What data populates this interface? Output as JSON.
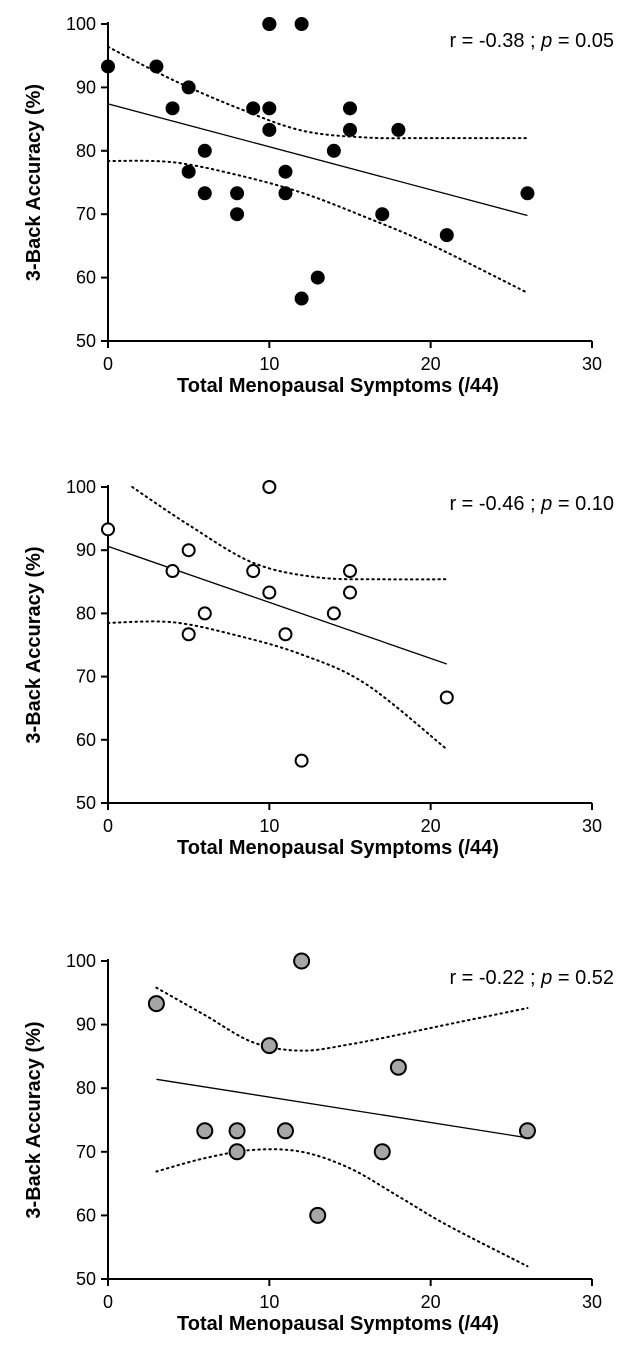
{
  "chart_data": [
    {
      "type": "scatter",
      "xlabel": "Total Menopausal Symptoms (/44)",
      "ylabel": "3-Back Accuracy (%)",
      "xlim": [
        0,
        30
      ],
      "ylim": [
        50,
        100
      ],
      "xticks": [
        "0",
        "10",
        "20",
        "30"
      ],
      "yticks": [
        "50",
        "60",
        "70",
        "80",
        "90",
        "100"
      ],
      "grid": false,
      "marker": {
        "fill": "#000000",
        "stroke": "#000000"
      },
      "annotation": {
        "r_text": "r = -0.38 ; ",
        "p_label": "p",
        "p_text": " = 0.05"
      },
      "fit_line": {
        "x": [
          0,
          26
        ],
        "y": [
          87.4,
          69.8
        ]
      },
      "ci_upper": {
        "x": [
          0,
          4,
          8,
          12,
          16,
          20,
          26
        ],
        "y": [
          96.4,
          91.2,
          86.8,
          83.2,
          82.1,
          82.0,
          82.0
        ]
      },
      "ci_lower": {
        "x": [
          0,
          4,
          8,
          12,
          16,
          20,
          26
        ],
        "y": [
          78.4,
          78.2,
          76.2,
          73.4,
          69.5,
          65.2,
          57.6
        ]
      },
      "points": {
        "x": [
          0,
          3,
          4,
          5,
          5,
          6,
          6,
          8,
          8,
          9,
          10,
          10,
          10,
          10,
          11,
          11,
          12,
          12,
          13,
          14,
          15,
          15,
          17,
          18,
          21,
          26
        ],
        "y": [
          93.3,
          93.3,
          86.7,
          90.0,
          76.7,
          80.0,
          73.3,
          73.3,
          70.0,
          86.7,
          100,
          86.7,
          83.3,
          100,
          76.7,
          73.3,
          100,
          56.7,
          60.0,
          80.0,
          86.7,
          83.3,
          70.0,
          83.3,
          66.7,
          73.3
        ]
      }
    },
    {
      "type": "scatter",
      "xlabel": "Total Menopausal Symptoms (/44)",
      "ylabel": "3-Back Accuracy (%)",
      "xlim": [
        0,
        30
      ],
      "ylim": [
        50,
        100
      ],
      "xticks": [
        "0",
        "10",
        "20",
        "30"
      ],
      "yticks": [
        "50",
        "60",
        "70",
        "80",
        "90",
        "100"
      ],
      "grid": false,
      "marker": {
        "fill": "#ffffff",
        "stroke": "#000000"
      },
      "annotation": {
        "r_text": "r = -0.46 ; ",
        "p_label": "p",
        "p_text": " = 0.10"
      },
      "fit_line": {
        "x": [
          0,
          21
        ],
        "y": [
          90.6,
          72.0
        ]
      },
      "ci_upper": {
        "x": [
          1.5,
          5,
          9,
          13,
          17,
          21
        ],
        "y": [
          100,
          94.0,
          88.0,
          85.7,
          85.4,
          85.4
        ]
      },
      "ci_lower": {
        "x": [
          0,
          4,
          8,
          12,
          16,
          21
        ],
        "y": [
          78.5,
          78.6,
          76.5,
          73.5,
          68.8,
          58.5
        ]
      },
      "points": {
        "x": [
          0,
          4,
          5,
          5,
          6,
          9,
          10,
          10,
          11,
          12,
          14,
          15,
          15,
          21
        ],
        "y": [
          93.3,
          86.7,
          90.0,
          76.7,
          80.0,
          86.7,
          100,
          83.3,
          76.7,
          56.7,
          80.0,
          86.7,
          83.3,
          66.7
        ]
      }
    },
    {
      "type": "scatter",
      "xlabel": "Total Menopausal Symptoms (/44)",
      "ylabel": "3-Back Accuracy (%)",
      "xlim": [
        0,
        30
      ],
      "ylim": [
        50,
        100
      ],
      "xticks": [
        "0",
        "10",
        "20",
        "30"
      ],
      "yticks": [
        "50",
        "60",
        "70",
        "80",
        "90",
        "100"
      ],
      "grid": false,
      "marker": {
        "fill": "#a6a6a6",
        "stroke": "#000000"
      },
      "annotation": {
        "r_text": "r = -0.22 ; ",
        "p_label": "p",
        "p_text": " = 0.52"
      },
      "fit_line": {
        "x": [
          3,
          26
        ],
        "y": [
          81.4,
          72.2
        ]
      },
      "ci_upper": {
        "x": [
          3,
          6,
          9,
          12,
          15,
          18,
          21,
          26
        ],
        "y": [
          95.8,
          91.5,
          87.2,
          85.9,
          86.9,
          88.4,
          90.0,
          92.6
        ]
      },
      "ci_lower": {
        "x": [
          3,
          6,
          9,
          12,
          15,
          18,
          21,
          26
        ],
        "y": [
          66.9,
          69.0,
          70.3,
          70.0,
          67.4,
          63.0,
          58.5,
          52.0
        ]
      },
      "points": {
        "x": [
          3,
          6,
          8,
          8,
          10,
          11,
          12,
          13,
          17,
          18,
          26
        ],
        "y": [
          93.3,
          73.3,
          73.3,
          70.0,
          86.7,
          73.3,
          100,
          60.0,
          70.0,
          83.3,
          73.3
        ]
      }
    }
  ]
}
